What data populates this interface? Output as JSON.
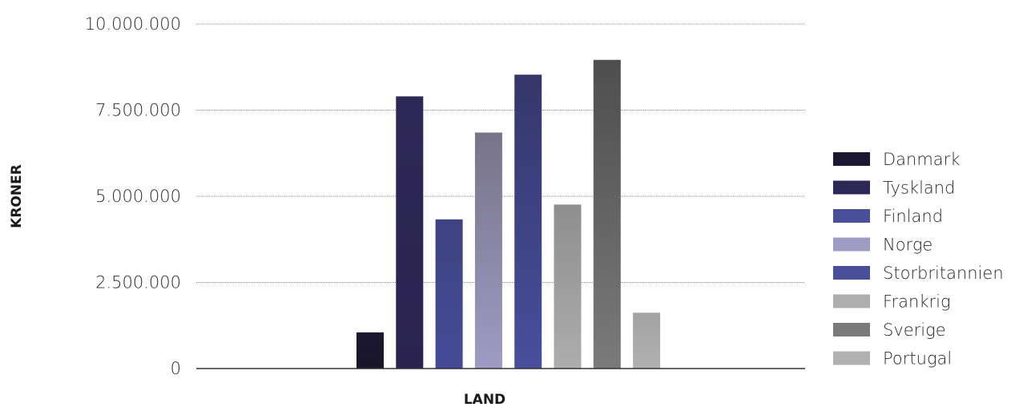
{
  "chart_data": {
    "type": "bar",
    "title": "",
    "xlabel": "LAND",
    "ylabel": "KRONER",
    "ylim": [
      0,
      10000000
    ],
    "yticks": [
      0,
      2500000,
      5000000,
      7500000,
      10000000
    ],
    "ytick_labels": [
      "0",
      "2.500.000",
      "5.000.000",
      "7.500.000",
      "10.000.000"
    ],
    "grid": true,
    "legend_position": "right",
    "series": [
      {
        "name": "Danmark",
        "value": 1050000,
        "color_top": "#1c1833",
        "color_bottom": "#181529"
      },
      {
        "name": "Tyskland",
        "value": 7900000,
        "color_top": "#2e2856",
        "color_bottom": "#2a2350"
      },
      {
        "name": "Finland",
        "value": 4330000,
        "color_top": "#3f4382",
        "color_bottom": "#454b97"
      },
      {
        "name": "Norge",
        "value": 6850000,
        "color_top": "#777489",
        "color_bottom": "#9e9bc4"
      },
      {
        "name": "Storbritannien",
        "value": 8530000,
        "color_top": "#35376a",
        "color_bottom": "#484f9c"
      },
      {
        "name": "Frankrig",
        "value": 4760000,
        "color_top": "#8e8e8e",
        "color_bottom": "#adadad"
      },
      {
        "name": "Sverige",
        "value": 8960000,
        "color_top": "#4e4e4e",
        "color_bottom": "#7a7a7a"
      },
      {
        "name": "Portugal",
        "value": 1620000,
        "color_top": "#a3a3a3",
        "color_bottom": "#b1b1b1"
      }
    ],
    "legend_colors": [
      "#1c1833",
      "#2e2856",
      "#4a4f9a",
      "#9e9bc4",
      "#4a4f9a",
      "#adadad",
      "#7a7a7a",
      "#b1b1b1"
    ]
  }
}
